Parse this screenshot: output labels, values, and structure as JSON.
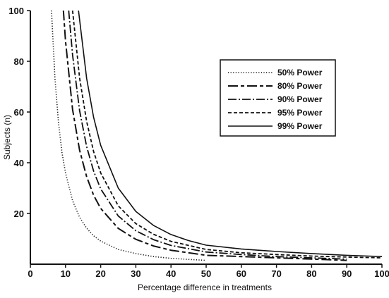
{
  "chart_data": {
    "type": "line",
    "xlabel": "Percentage difference in treatments",
    "ylabel": "Subjects (n)",
    "xlim": [
      0,
      100
    ],
    "ylim": [
      0,
      100
    ],
    "x_ticks": [
      "0",
      "10",
      "20",
      "30",
      "40",
      "50",
      "60",
      "70",
      "80",
      "90",
      "100"
    ],
    "y_ticks": [
      "20",
      "40",
      "60",
      "80",
      "100"
    ],
    "grid": false,
    "legend_position": "top-right",
    "series": [
      {
        "name": "50% Power",
        "style": "dotted",
        "points": [
          [
            6,
            100
          ],
          [
            7,
            73
          ],
          [
            8,
            56
          ],
          [
            9,
            44
          ],
          [
            10,
            36
          ],
          [
            12,
            25
          ],
          [
            14,
            18.5
          ],
          [
            16,
            14.2
          ],
          [
            18,
            11.2
          ],
          [
            20,
            9.1
          ],
          [
            25,
            5.8
          ],
          [
            30,
            4.2
          ],
          [
            35,
            3
          ],
          [
            40,
            2.3
          ],
          [
            45,
            1.9
          ],
          [
            50,
            1.5
          ]
        ]
      },
      {
        "name": "80% Power",
        "style": "long-dash",
        "points": [
          [
            9.4,
            100
          ],
          [
            10,
            88
          ],
          [
            12,
            61
          ],
          [
            14,
            45
          ],
          [
            16,
            34.5
          ],
          [
            18,
            27.2
          ],
          [
            20,
            22
          ],
          [
            25,
            14.1
          ],
          [
            30,
            9.8
          ],
          [
            35,
            7.2
          ],
          [
            40,
            5.5
          ],
          [
            50,
            3.5
          ],
          [
            60,
            3
          ],
          [
            70,
            2.5
          ],
          [
            80,
            2
          ],
          [
            90,
            1.5
          ]
        ]
      },
      {
        "name": "90% Power",
        "style": "dash-dot",
        "points": [
          [
            10.9,
            100
          ],
          [
            12,
            82.5
          ],
          [
            14,
            60.6
          ],
          [
            16,
            46.4
          ],
          [
            18,
            36.7
          ],
          [
            20,
            29.7
          ],
          [
            25,
            19
          ],
          [
            30,
            13.2
          ],
          [
            35,
            9.7
          ],
          [
            40,
            7.4
          ],
          [
            50,
            4.8
          ],
          [
            60,
            3.8
          ],
          [
            70,
            3
          ],
          [
            80,
            2.5
          ],
          [
            90,
            2
          ]
        ]
      },
      {
        "name": "95% Power",
        "style": "short-dash",
        "points": [
          [
            12,
            100
          ],
          [
            14,
            73.5
          ],
          [
            16,
            56.3
          ],
          [
            18,
            44.4
          ],
          [
            20,
            36
          ],
          [
            25,
            23
          ],
          [
            30,
            16
          ],
          [
            35,
            11.8
          ],
          [
            40,
            9
          ],
          [
            50,
            5.8
          ],
          [
            60,
            4.5
          ],
          [
            70,
            3.8
          ],
          [
            80,
            3.2
          ],
          [
            90,
            2.8
          ],
          [
            100,
            2.5
          ]
        ]
      },
      {
        "name": "99% Power",
        "style": "solid",
        "points": [
          [
            13.7,
            100
          ],
          [
            16,
            73.3
          ],
          [
            18,
            57.9
          ],
          [
            20,
            46.9
          ],
          [
            25,
            30
          ],
          [
            30,
            20.8
          ],
          [
            35,
            15.3
          ],
          [
            40,
            11.7
          ],
          [
            45,
            9.3
          ],
          [
            50,
            7.5
          ],
          [
            60,
            6
          ],
          [
            70,
            5
          ],
          [
            80,
            4.2
          ],
          [
            90,
            3.5
          ],
          [
            100,
            3
          ]
        ]
      }
    ]
  }
}
